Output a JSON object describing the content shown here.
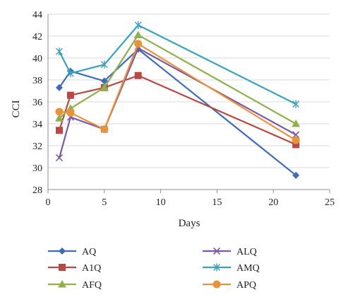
{
  "chart_data": {
    "type": "line",
    "xlabel": "Days",
    "ylabel": "CCI",
    "xlim": [
      0,
      25
    ],
    "ylim": [
      28,
      44
    ],
    "x_ticks": [
      0,
      5,
      10,
      15,
      20,
      25
    ],
    "y_ticks": [
      28,
      30,
      32,
      34,
      36,
      38,
      40,
      42,
      44
    ],
    "x_tick_labels": [
      "0",
      "5",
      "10",
      "15",
      "20",
      "25"
    ],
    "y_tick_labels": [
      "28",
      "30",
      "32",
      "34",
      "36",
      "38",
      "40",
      "42",
      "44"
    ],
    "grid": "horizontal",
    "legend_position": "bottom",
    "series": [
      {
        "name": "AQ",
        "color": "#3e6db5",
        "marker": "diamond",
        "x": [
          1,
          2,
          5,
          8,
          22
        ],
        "y": [
          37.3,
          38.8,
          37.9,
          40.8,
          29.3
        ]
      },
      {
        "name": "A1Q",
        "color": "#b84844",
        "marker": "square",
        "x": [
          1,
          2,
          5,
          8,
          22
        ],
        "y": [
          33.4,
          36.6,
          37.3,
          38.4,
          32.1
        ]
      },
      {
        "name": "AFQ",
        "color": "#8fb04d",
        "marker": "triangle",
        "x": [
          1,
          2,
          5,
          8,
          22
        ],
        "y": [
          34.5,
          35.4,
          37.3,
          42.1,
          34.0
        ]
      },
      {
        "name": "ALQ",
        "color": "#7a5ba3",
        "marker": "x",
        "x": [
          1,
          2,
          5,
          8,
          22
        ],
        "y": [
          30.9,
          34.6,
          33.5,
          40.9,
          33.0
        ]
      },
      {
        "name": "AMQ",
        "color": "#3aa2bd",
        "marker": "star",
        "x": [
          1,
          2,
          5,
          8,
          22
        ],
        "y": [
          40.6,
          38.6,
          39.4,
          43.0,
          35.8
        ]
      },
      {
        "name": "APQ",
        "color": "#e8923a",
        "marker": "circle",
        "x": [
          1,
          2,
          5,
          8,
          22
        ],
        "y": [
          35.1,
          35.0,
          33.5,
          41.3,
          32.5
        ]
      }
    ]
  }
}
